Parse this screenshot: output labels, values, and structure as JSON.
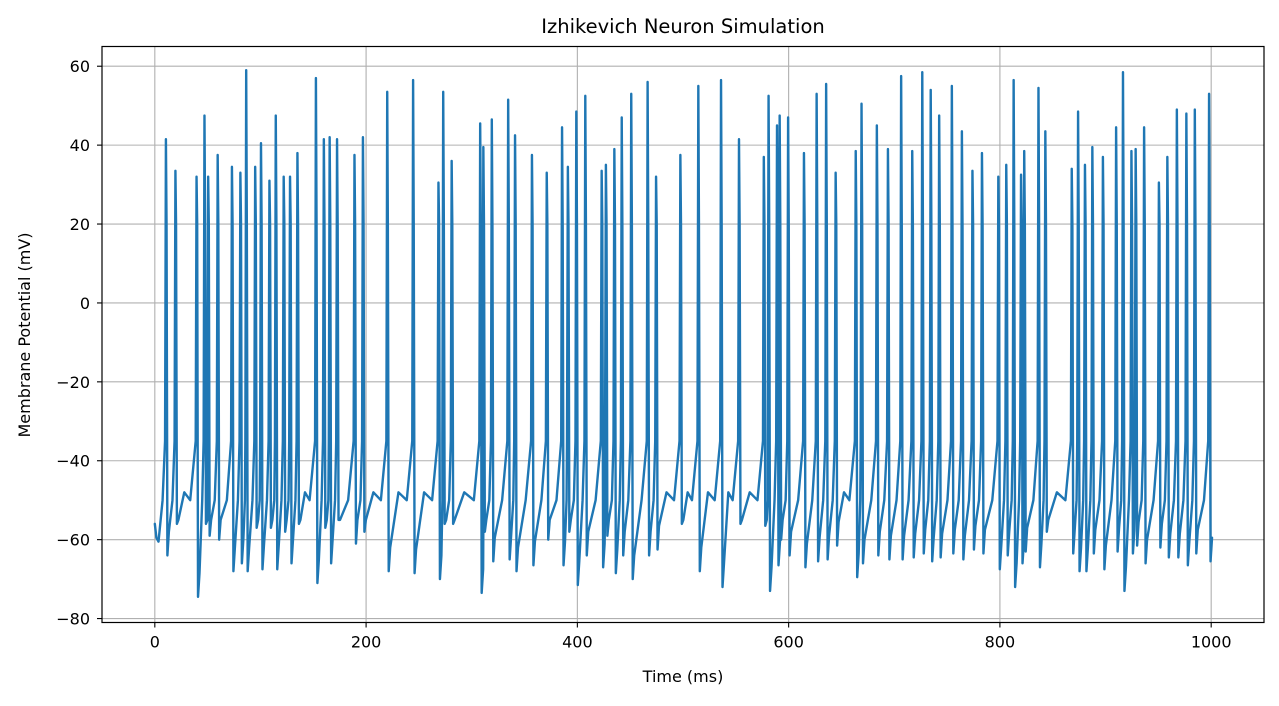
{
  "chart_data": {
    "type": "line",
    "title": "Izhikevich Neuron Simulation",
    "xlabel": "Time (ms)",
    "ylabel": "Membrane Potential (mV)",
    "xlim": [
      -50,
      1050
    ],
    "ylim": [
      -81,
      65
    ],
    "grid": true,
    "legend": "none",
    "x_ticks": [
      0,
      200,
      400,
      600,
      800,
      1000
    ],
    "x_tick_labels": [
      "0",
      "200",
      "400",
      "600",
      "800",
      "1000"
    ],
    "y_ticks": [
      60,
      40,
      20,
      0,
      -20,
      -40,
      -60,
      -80
    ],
    "y_tick_labels": [
      "60",
      "40",
      "20",
      "0",
      "−20",
      "−40",
      "−60",
      "−80"
    ],
    "series": [
      {
        "color": "#1f77b4",
        "spikes": [
          [
            10.5,
            41.5,
            -64.0
          ],
          [
            19.5,
            33.5,
            -56.0
          ],
          [
            39.5,
            32.0,
            -74.5
          ],
          [
            47.0,
            47.5,
            -56.0
          ],
          [
            50.5,
            32.0,
            -59.0
          ],
          [
            59.5,
            37.5,
            -60.0
          ],
          [
            73.0,
            34.5,
            -68.0
          ],
          [
            81.0,
            33.0,
            -66.0
          ],
          [
            86.5,
            59.0,
            -68.0
          ],
          [
            95.0,
            34.5,
            -57.0
          ],
          [
            100.5,
            40.5,
            -67.5
          ],
          [
            108.5,
            31.0,
            -57.0
          ],
          [
            114.5,
            47.5,
            -67.5
          ],
          [
            122.0,
            32.0,
            -58.0
          ],
          [
            128.0,
            32.0,
            -66.0
          ],
          [
            135.0,
            38.0,
            -56.0
          ],
          [
            152.5,
            57.0,
            -71.0
          ],
          [
            160.0,
            41.5,
            -57.0
          ],
          [
            165.5,
            42.0,
            -66.0
          ],
          [
            172.5,
            41.5,
            -55.0
          ],
          [
            189.0,
            37.5,
            -61.0
          ],
          [
            197.0,
            42.0,
            -58.0
          ],
          [
            220.0,
            53.5,
            -68.0
          ],
          [
            244.5,
            56.5,
            -68.5
          ],
          [
            268.5,
            30.5,
            -70.0
          ],
          [
            273.0,
            53.5,
            -56.0
          ],
          [
            281.0,
            36.0,
            -56.0
          ],
          [
            308.0,
            45.5,
            -73.5
          ],
          [
            311.0,
            39.5,
            -58.0
          ],
          [
            319.0,
            46.5,
            -65.5
          ],
          [
            334.5,
            51.5,
            -65.0
          ],
          [
            341.0,
            42.5,
            -68.0
          ],
          [
            357.0,
            37.5,
            -66.5
          ],
          [
            371.0,
            33.0,
            -60.0
          ],
          [
            385.5,
            44.5,
            -66.5
          ],
          [
            391.0,
            34.5,
            -58.0
          ],
          [
            399.0,
            48.5,
            -71.5
          ],
          [
            407.5,
            52.5,
            -64.0
          ],
          [
            423.0,
            33.5,
            -67.0
          ],
          [
            427.0,
            35.0,
            -59.0
          ],
          [
            435.0,
            39.0,
            -68.5
          ],
          [
            442.0,
            47.0,
            -64.0
          ],
          [
            451.0,
            53.0,
            -70.0
          ],
          [
            466.5,
            56.0,
            -64.0
          ],
          [
            474.5,
            32.0,
            -62.5
          ],
          [
            497.5,
            37.5,
            -56.0
          ],
          [
            514.5,
            55.0,
            -68.0
          ],
          [
            536.0,
            56.5,
            -72.0
          ],
          [
            553.0,
            41.5,
            -56.0
          ],
          [
            576.5,
            37.0,
            -56.5
          ],
          [
            581.0,
            52.5,
            -73.0
          ],
          [
            589.0,
            45.0,
            -66.5
          ],
          [
            591.5,
            47.5,
            -60.0
          ],
          [
            599.5,
            47.0,
            -64.0
          ],
          [
            614.5,
            38.0,
            -67.0
          ],
          [
            626.5,
            53.0,
            -65.5
          ],
          [
            635.5,
            55.5,
            -65.0
          ],
          [
            644.5,
            33.0,
            -61.5
          ],
          [
            663.5,
            38.5,
            -69.5
          ],
          [
            669.0,
            50.5,
            -66.0
          ],
          [
            683.5,
            45.0,
            -64.0
          ],
          [
            694.0,
            39.0,
            -65.0
          ],
          [
            706.5,
            57.5,
            -65.0
          ],
          [
            717.0,
            38.5,
            -64.5
          ],
          [
            726.5,
            58.5,
            -63.5
          ],
          [
            734.5,
            54.0,
            -65.5
          ],
          [
            742.5,
            47.5,
            -64.5
          ],
          [
            754.5,
            55.0,
            -63.5
          ],
          [
            764.0,
            43.5,
            -65.0
          ],
          [
            774.0,
            33.5,
            -62.5
          ],
          [
            783.0,
            38.0,
            -63.5
          ],
          [
            798.5,
            32.0,
            -67.5
          ],
          [
            806.0,
            35.0,
            -64.0
          ],
          [
            813.0,
            56.5,
            -72.0
          ],
          [
            820.0,
            32.5,
            -66.0
          ],
          [
            823.0,
            38.5,
            -63.0
          ],
          [
            836.5,
            54.5,
            -67.0
          ],
          [
            843.0,
            43.5,
            -58.0
          ],
          [
            868.0,
            34.0,
            -63.5
          ],
          [
            874.0,
            48.5,
            -68.0
          ],
          [
            880.5,
            35.0,
            -68.0
          ],
          [
            887.5,
            39.5,
            -63.5
          ],
          [
            897.5,
            37.0,
            -67.5
          ],
          [
            910.0,
            44.5,
            -63.0
          ],
          [
            916.5,
            58.5,
            -73.0
          ],
          [
            924.5,
            38.5,
            -63.5
          ],
          [
            928.5,
            39.0,
            -61.5
          ],
          [
            936.5,
            44.5,
            -66.0
          ],
          [
            950.5,
            30.5,
            -62.0
          ],
          [
            958.5,
            37.0,
            -64.5
          ],
          [
            967.5,
            49.0,
            -64.5
          ],
          [
            976.5,
            48.0,
            -66.5
          ],
          [
            984.5,
            49.0,
            -63.5
          ],
          [
            998.0,
            53.0,
            -65.5
          ]
        ]
      }
    ]
  }
}
